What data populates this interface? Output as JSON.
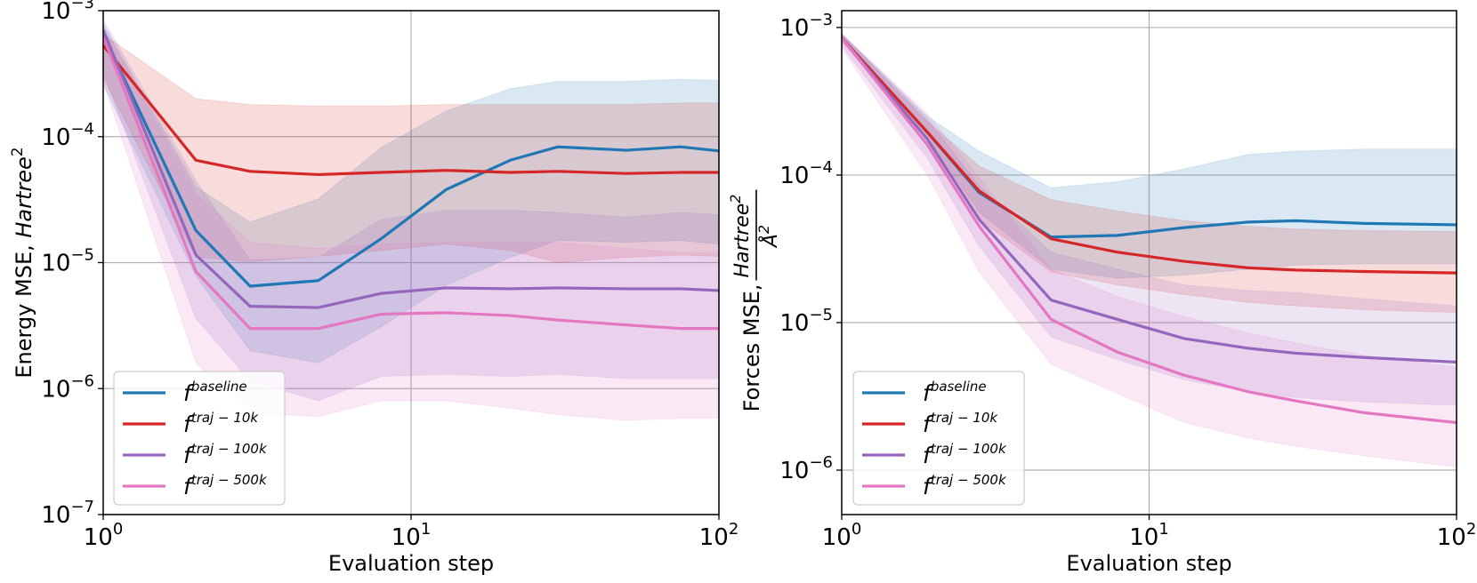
{
  "colors": {
    "baseline": "#1f77b4",
    "traj_10k": "#d62728",
    "traj_100k": "#9467bd",
    "traj_500k": "#e377c2",
    "grid": "#b0b0b0"
  },
  "chart_data": [
    {
      "type": "line",
      "xscale": "log",
      "yscale": "log",
      "xlim": [
        1,
        100
      ],
      "ylim": [
        1e-07,
        0.001
      ],
      "xlabel": "Evaluation step",
      "ylabel": "Energy MSE, Hartree²",
      "ylabel_parts": {
        "text": "Energy MSE, ",
        "italic": "Hartree",
        "sup": "2"
      },
      "xticks": [
        {
          "value": 1,
          "base": "10",
          "exp": "0"
        },
        {
          "value": 10,
          "base": "10",
          "exp": "1"
        },
        {
          "value": 100,
          "base": "10",
          "exp": "2"
        }
      ],
      "yticks": [
        {
          "value": 1e-07,
          "base": "10",
          "exp": "−7"
        },
        {
          "value": 1e-06,
          "base": "10",
          "exp": "−6"
        },
        {
          "value": 1e-05,
          "base": "10",
          "exp": "−5"
        },
        {
          "value": 0.0001,
          "base": "10",
          "exp": "−4"
        },
        {
          "value": 0.001,
          "base": "10",
          "exp": "−3"
        }
      ],
      "grid": true,
      "legend_position": "lower-left",
      "x": [
        1,
        2,
        3,
        5,
        8,
        13,
        21,
        30,
        50,
        75,
        100
      ],
      "series": [
        {
          "key": "baseline",
          "name": "f^baseline",
          "label_base": "f",
          "label_sup": "baseline",
          "color": "#1f77b4",
          "values": [
            0.00065,
            1.8e-05,
            6.5e-06,
            7.2e-06,
            1.55e-05,
            3.8e-05,
            6.5e-05,
            8.3e-05,
            7.8e-05,
            8.3e-05,
            7.7e-05
          ],
          "lower": [
            0.00026,
            7.8e-06,
            2e-06,
            1.6e-06,
            3.1e-06,
            6.6e-06,
            1.1e-05,
            1.5e-05,
            1.45e-05,
            1.5e-05,
            1.4e-05
          ],
          "upper": [
            0.00078,
            4e-05,
            2.1e-05,
            3.2e-05,
            8.2e-05,
            0.00016,
            0.00024,
            0.000275,
            0.000275,
            0.000285,
            0.00028
          ]
        },
        {
          "key": "traj_10k",
          "name": "f^traj−10k",
          "label_base": "f",
          "label_sup": "traj − 10k",
          "color": "#d62728",
          "values": [
            0.00053,
            6.5e-05,
            5.3e-05,
            5e-05,
            5.2e-05,
            5.4e-05,
            5.2e-05,
            5.3e-05,
            5.1e-05,
            5.2e-05,
            5.2e-05
          ],
          "lower": [
            0.00029,
            1.1e-05,
            1.02e-05,
            1.12e-05,
            1.25e-05,
            1.4e-05,
            1.25e-05,
            1e-05,
            1.1e-05,
            1.15e-05,
            1.12e-05
          ],
          "upper": [
            0.00065,
            0.0002,
            0.00018,
            0.000175,
            0.000175,
            0.00018,
            0.00018,
            0.00018,
            0.00018,
            0.000185,
            0.000185
          ]
        },
        {
          "key": "traj_100k",
          "name": "f^traj−100k",
          "label_base": "f",
          "label_sup": "traj − 100k",
          "color": "#9467bd",
          "values": [
            0.0007,
            1.15e-05,
            4.5e-06,
            4.4e-06,
            5.7e-06,
            6.3e-06,
            6.2e-06,
            6.3e-06,
            6.2e-06,
            6.2e-06,
            6e-06
          ],
          "lower": [
            0.00032,
            3.6e-06,
            1.15e-06,
            8e-07,
            1.25e-06,
            1.3e-06,
            1.25e-06,
            1.3e-06,
            1.2e-06,
            1.2e-06,
            1.2e-06
          ],
          "upper": [
            0.00085,
            4.5e-05,
            1.05e-05,
            1.1e-05,
            2.2e-05,
            2.6e-05,
            2.6e-05,
            2.5e-05,
            2.3e-05,
            2.5e-05,
            2.4e-05
          ]
        },
        {
          "key": "traj_500k",
          "name": "f^traj−500k",
          "label_base": "f",
          "label_sup": "traj − 500k",
          "color": "#e377c2",
          "values": [
            0.00062,
            8.5e-06,
            3e-06,
            3e-06,
            3.9e-06,
            4e-06,
            3.8e-06,
            3.5e-06,
            3.2e-06,
            3e-06,
            3e-06
          ],
          "lower": [
            0.00027,
            1.6e-06,
            6.4e-07,
            6e-07,
            8e-07,
            8e-07,
            7e-07,
            6.2e-07,
            5.6e-07,
            5.8e-07,
            5.8e-07
          ],
          "upper": [
            0.00076,
            3.5e-05,
            1.45e-05,
            1.3e-05,
            1.4e-05,
            1.45e-05,
            1.45e-05,
            1.45e-05,
            1.3e-05,
            1.2e-05,
            1.2e-05
          ]
        }
      ]
    },
    {
      "type": "line",
      "xscale": "log",
      "yscale": "log",
      "xlim": [
        1,
        100
      ],
      "ylim": [
        5e-07,
        0.0013
      ],
      "xlabel": "Evaluation step",
      "ylabel": "Forces MSE, Hartree²/Å²",
      "ylabel_parts": {
        "text": "Forces MSE, ",
        "num": "Hartree",
        "num_sup": "2",
        "den": "Å",
        "den_sup": "2"
      },
      "xticks": [
        {
          "value": 1,
          "base": "10",
          "exp": "0"
        },
        {
          "value": 10,
          "base": "10",
          "exp": "1"
        },
        {
          "value": 100,
          "base": "10",
          "exp": "2"
        }
      ],
      "yticks": [
        {
          "value": 1e-06,
          "base": "10",
          "exp": "−6"
        },
        {
          "value": 1e-05,
          "base": "10",
          "exp": "−5"
        },
        {
          "value": 0.0001,
          "base": "10",
          "exp": "−4"
        },
        {
          "value": 0.001,
          "base": "10",
          "exp": "−3"
        }
      ],
      "grid": true,
      "legend_position": "lower-left",
      "x": [
        1,
        1.9,
        2.8,
        4.8,
        7.9,
        13,
        21,
        30,
        50,
        100
      ],
      "series": [
        {
          "key": "baseline",
          "name": "f^baseline",
          "label_base": "f",
          "label_sup": "baseline",
          "color": "#1f77b4",
          "values": [
            0.00085,
            0.000195,
            7.6e-05,
            3.8e-05,
            3.9e-05,
            4.4e-05,
            4.8e-05,
            4.9e-05,
            4.7e-05,
            4.6e-05
          ],
          "lower": [
            0.00082,
            0.00018,
            5.6e-05,
            2.3e-05,
            2e-05,
            2.1e-05,
            2.3e-05,
            2.45e-05,
            2.5e-05,
            2.5e-05
          ],
          "upper": [
            0.0009,
            0.00025,
            0.000145,
            8.2e-05,
            9e-05,
            0.00011,
            0.000138,
            0.000145,
            0.00015,
            0.00015
          ]
        },
        {
          "key": "traj_10k",
          "name": "f^traj−10k",
          "label_base": "f",
          "label_sup": "traj − 10k",
          "color": "#d62728",
          "values": [
            0.00085,
            0.000195,
            7.8e-05,
            3.7e-05,
            3e-05,
            2.6e-05,
            2.35e-05,
            2.27e-05,
            2.22e-05,
            2.17e-05
          ],
          "lower": [
            0.0008,
            0.000175,
            5e-05,
            2.2e-05,
            1.8e-05,
            1.55e-05,
            1.37e-05,
            1.3e-05,
            1.22e-05,
            1.17e-05
          ],
          "upper": [
            0.0009,
            0.00023,
            0.000115,
            6.8e-05,
            5.7e-05,
            4.9e-05,
            4.5e-05,
            4.3e-05,
            4.2e-05,
            4.15e-05
          ]
        },
        {
          "key": "traj_100k",
          "name": "f^traj−100k",
          "label_base": "f",
          "label_sup": "traj − 100k",
          "color": "#9467bd",
          "values": [
            0.00085,
            0.000175,
            5e-05,
            1.42e-05,
            1.05e-05,
            7.8e-06,
            6.7e-06,
            6.2e-06,
            5.8e-06,
            5.4e-06
          ],
          "lower": [
            0.00075,
            0.00013,
            3.3e-05,
            8e-06,
            5.6e-06,
            4.1e-06,
            3.4e-06,
            3.1e-06,
            2.9e-06,
            2.75e-06
          ],
          "upper": [
            0.00091,
            0.00024,
            8.5e-05,
            3e-05,
            2.3e-05,
            1.8e-05,
            1.65e-05,
            1.6e-05,
            1.45e-05,
            1.3e-05
          ]
        },
        {
          "key": "traj_500k",
          "name": "f^traj−500k",
          "label_base": "f",
          "label_sup": "traj − 500k",
          "color": "#e377c2",
          "values": [
            0.00085,
            0.00016,
            4.5e-05,
            1.05e-05,
            6.3e-06,
            4.4e-06,
            3.4e-06,
            2.95e-06,
            2.45e-06,
            2.1e-06
          ],
          "lower": [
            0.00072,
            0.0001,
            2.2e-05,
            5.2e-06,
            3.3e-06,
            2.1e-06,
            1.65e-06,
            1.45e-06,
            1.25e-06,
            1.05e-06
          ],
          "upper": [
            0.00091,
            0.00026,
            9.6e-05,
            2.3e-05,
            1.5e-05,
            1.1e-05,
            8.5e-06,
            7.3e-06,
            6e-06,
            5e-06
          ]
        }
      ]
    }
  ]
}
